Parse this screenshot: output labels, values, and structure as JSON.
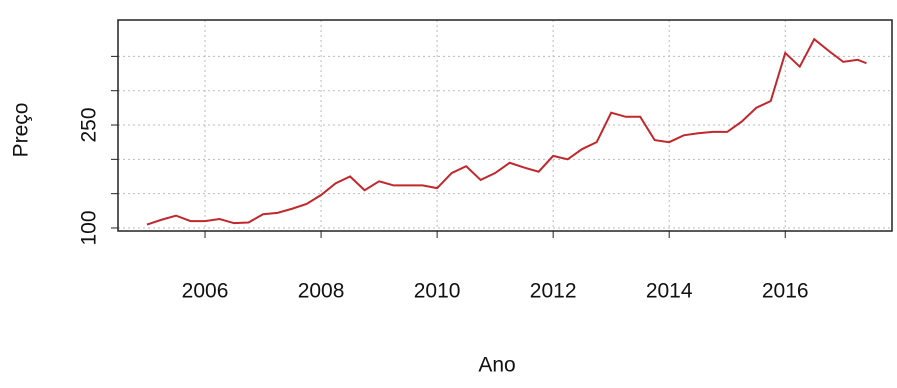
{
  "chart_data": {
    "type": "line",
    "x_label": "Ano",
    "y_label": "Preço",
    "x": [
      2005.0,
      2005.25,
      2005.5,
      2005.75,
      2006.0,
      2006.25,
      2006.5,
      2006.75,
      2007.0,
      2007.25,
      2007.5,
      2007.75,
      2008.0,
      2008.25,
      2008.5,
      2008.75,
      2009.0,
      2009.25,
      2009.5,
      2009.75,
      2010.0,
      2010.25,
      2010.5,
      2010.75,
      2011.0,
      2011.25,
      2011.5,
      2011.75,
      2012.0,
      2012.25,
      2012.5,
      2012.75,
      2013.0,
      2013.25,
      2013.5,
      2013.75,
      2014.0,
      2014.25,
      2014.5,
      2014.75,
      2015.0,
      2015.25,
      2015.5,
      2015.75,
      2016.0,
      2016.25,
      2016.5,
      2016.75,
      2017.0,
      2017.25,
      2017.4
    ],
    "series": [
      {
        "name": "Preço",
        "color": "#c0282d",
        "values": [
          105,
          112,
          118,
          110,
          110,
          113,
          107,
          108,
          120,
          122,
          128,
          135,
          148,
          165,
          175,
          155,
          168,
          162,
          162,
          162,
          158,
          180,
          190,
          170,
          180,
          195,
          188,
          182,
          205,
          200,
          215,
          225,
          268,
          262,
          262,
          228,
          225,
          235,
          238,
          240,
          240,
          255,
          275,
          285,
          355,
          335,
          375,
          358,
          342,
          345,
          340
        ]
      }
    ],
    "xlim": [
      2004.5,
      2017.84
    ],
    "ylim": [
      95.6,
      403
    ],
    "xticks": [
      2006,
      2008,
      2010,
      2012,
      2014,
      2016
    ],
    "yticks": [
      100,
      {
        "value": 150,
        "label": null
      },
      {
        "value": 200,
        "label": null
      },
      250,
      {
        "value": 300,
        "label": null
      },
      {
        "value": 350,
        "label": null
      }
    ],
    "grid": true
  }
}
